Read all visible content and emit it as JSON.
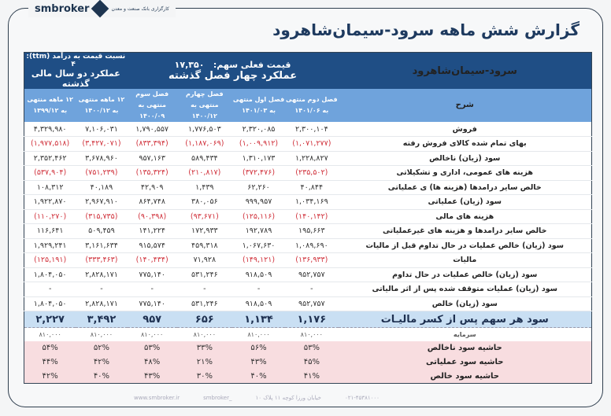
{
  "brand": {
    "name": "smbroker",
    "bank": "کارگزاری بانک صنعت و معدن"
  },
  "title": "گزارش شش ماهه سرود-سیمان‌شاهرود",
  "header": {
    "company": "سرود-سیمان‌شاهرود",
    "price_label": "قیمت فعلی سهم:",
    "price": "۱۷,۳۵۰",
    "pe_label": "نسبت  قیمت به درآمد (ttm):",
    "pe": "۴",
    "quarters_title": "عملکرد چهار فصل گذشته",
    "years_title": "عملکرد دو سال مالی گذشته"
  },
  "columns": {
    "desc": "شرح",
    "c": [
      "فصل دوم منتهی به ۱۴۰۱/۰۶",
      "فصل اول منتهی به ۱۴۰۱/۰۳",
      "فصل چهارم منتهی به ۱۴۰۰/۱۲",
      "فصل سوم منتهی به ۱۴۰۰/۰۹",
      "۱۲ ماهه منتهی به ۱۴۰۰/۱۲",
      "۱۲ ماهه منتهی به ۱۳۹۹/۱۲"
    ]
  },
  "rows": [
    {
      "label": "فروش",
      "v": [
        "۲,۳۰۰,۱۰۴",
        "۲,۳۲۰,۰۸۵",
        "۱,۷۷۶,۵۰۳",
        "۱,۷۹۰,۵۵۷",
        "۷,۱۰۶,۰۳۱",
        "۴,۳۲۹,۹۸۰"
      ]
    },
    {
      "label": "بهای تمام شده کالای فروش رفته",
      "neg": true,
      "v": [
        "(۱,۰۷۱,۲۷۷)",
        "(۱,۰۰۹,۹۱۲)",
        "(۱,۱۸۷,۰۶۹)",
        "(۸۳۳,۳۹۴)",
        "(۳,۴۲۷,۰۷۱)",
        "(۱,۹۷۷,۵۱۸)"
      ]
    },
    {
      "label": "سود (زیان) ناخالص",
      "v": [
        "۱,۲۲۸,۸۲۷",
        "۱,۳۱۰,۱۷۳",
        "۵۸۹,۴۳۴",
        "۹۵۷,۱۶۳",
        "۳,۶۷۸,۹۶۰",
        "۲,۳۵۲,۴۶۲"
      ]
    },
    {
      "label": "هزینه های عمومی، اداری و تشکیلاتی",
      "neg": true,
      "v": [
        "(۲۳۵,۵۰۲)",
        "(۳۷۲,۴۷۶)",
        "(۲۱۰,۸۱۷)",
        "(۱۳۵,۳۲۴)",
        "(۷۵۱,۲۳۹)",
        "(۵۳۷,۹۰۴)"
      ]
    },
    {
      "label": "خالص سایر درامدها (هزینه ها) ی عملیاتی",
      "v": [
        "۴۰,۸۴۴",
        "۶۲,۲۶۰",
        "۱,۴۳۹",
        "۴۲,۹۰۹",
        "۴۰,۱۸۹",
        "۱۰۸,۳۱۲"
      ]
    },
    {
      "label": "سود (زیان) عملیاتی",
      "v": [
        "۱,۰۳۴,۱۶۹",
        "۹۹۹,۹۵۷",
        "۳۸۰,۰۵۶",
        "۸۶۴,۷۴۸",
        "۲,۹۶۷,۹۱۰",
        "۱,۹۲۲,۸۷۰"
      ]
    },
    {
      "label": "هزینه های مالی",
      "neg": true,
      "v": [
        "(۱۴۰,۱۴۲)",
        "(۱۲۵,۱۱۶)",
        "(۹۳,۶۷۱)",
        "(۹۰,۳۹۸)",
        "(۳۱۵,۷۳۵)",
        "(۱۱۰,۲۷۰)"
      ]
    },
    {
      "label": "خالص سایر درامدها و هزینه های غیرعملیاتی",
      "v": [
        "۱۹۵,۶۶۳",
        "۱۹۲,۷۸۹",
        "۱۷۲,۹۳۳",
        "۱۴۱,۲۲۴",
        "۵۰۹,۴۵۹",
        "۱۱۶,۶۴۱"
      ]
    },
    {
      "label": "سود (زیان) خالص عملیات در حال تداوم قبل از مالیات",
      "v": [
        "۱,۰۸۹,۶۹۰",
        "۱,۰۶۷,۶۳۰",
        "۴۵۹,۳۱۸",
        "۹۱۵,۵۷۴",
        "۳,۱۶۱,۶۳۴",
        "۱,۹۲۹,۲۴۱"
      ]
    },
    {
      "label": "مالیات",
      "neg": true,
      "v": [
        "(۱۳۶,۹۳۳)",
        "(۱۴۹,۱۲۱)",
        "۷۱,۹۲۸",
        "(۱۴۰,۴۳۴)",
        "(۳۳۳,۴۶۳)",
        "(۱۲۵,۱۹۱)"
      ]
    },
    {
      "label": "سود (زیان) خالص عملیات در حال تداوم",
      "v": [
        "۹۵۲,۷۵۷",
        "۹۱۸,۵۰۹",
        "۵۳۱,۲۴۶",
        "۷۷۵,۱۴۰",
        "۲,۸۲۸,۱۷۱",
        "۱,۸۰۴,۰۵۰"
      ]
    },
    {
      "label": "سود (زیان) عملیات متوقف شده پس از اثر مالیاتی",
      "v": [
        "-",
        "-",
        "-",
        "-",
        "-",
        "-"
      ]
    },
    {
      "label": "سود (زیان) خالص",
      "v": [
        "۹۵۲,۷۵۷",
        "۹۱۸,۵۰۹",
        "۵۳۱,۲۴۶",
        "۷۷۵,۱۴۰",
        "۲,۸۲۸,۱۷۱",
        "۱,۸۰۴,۰۵۰"
      ]
    }
  ],
  "eps": {
    "label": "سود هر سهم پس از کسر مالیـات",
    "v": [
      "۱,۱۷۶",
      "۱,۱۳۴",
      "۶۵۶",
      "۹۵۷",
      "۳,۴۹۲",
      "۲,۲۲۷"
    ]
  },
  "capital": {
    "label": "سرمایه",
    "v": [
      "۸۱۰,۰۰۰",
      "۸۱۰,۰۰۰",
      "۸۱۰,۰۰۰",
      "۸۱۰,۰۰۰",
      "۸۱۰,۰۰۰",
      "۸۱۰,۰۰۰"
    ]
  },
  "margins": [
    {
      "label": "حاشیه سود ناخالص",
      "v": [
        "۵۳%",
        "۵۶%",
        "۳۳%",
        "۵۳%",
        "۵۲%",
        "۵۴%"
      ]
    },
    {
      "label": "حاشیه سود عملیاتی",
      "v": [
        "۴۵%",
        "۴۳%",
        "۲۱%",
        "۴۸%",
        "۴۲%",
        "۴۴%"
      ]
    },
    {
      "label": "حاشیه سود خالص",
      "v": [
        "۴۱%",
        "۴۰%",
        "۳۰%",
        "۴۳%",
        "۴۰%",
        "۴۲%"
      ]
    }
  ],
  "footer": {
    "website": "www.smbroker.ir",
    "instagram": "smbroker_",
    "address": "خیابان ورزا کوچه ۱۱ پلاک ۱۰",
    "phone": "۰۲۱-۴۵۳۸۱۰۰۰"
  },
  "colors": {
    "header": "#1f4e85",
    "subheader": "#6fa3dc",
    "negative": "#d0303a",
    "eps": "#c9dff3",
    "margin": "#f8dde0"
  }
}
